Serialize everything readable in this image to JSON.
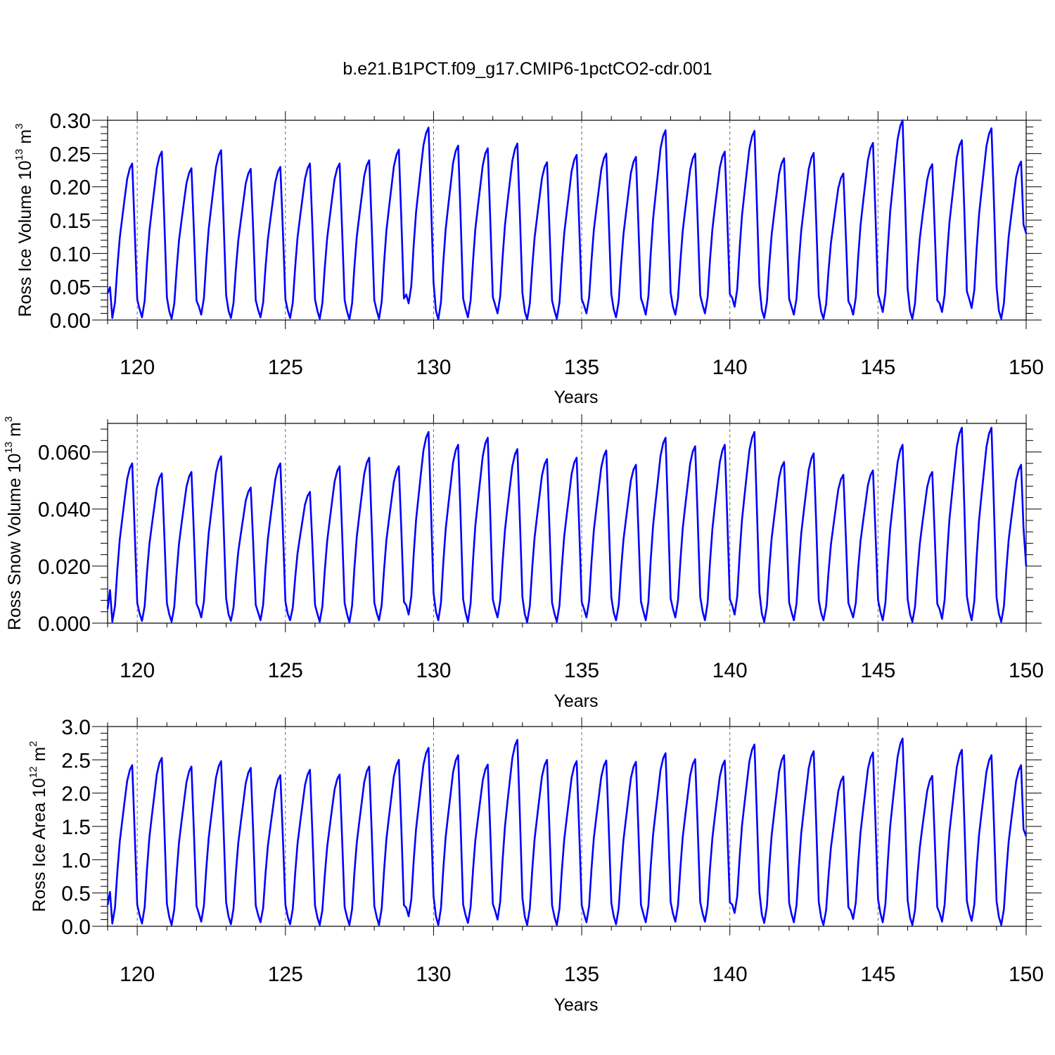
{
  "title": "b.e21.B1PCT.f09_g17.CMIP6-1pctCO2-cdr.001",
  "colors": {
    "line": "#0000ff",
    "axis": "#000000",
    "year_marker": "#666666"
  },
  "chart_data": [
    {
      "type": "line",
      "ylabel": {
        "prefix": "Ross Ice Volume 10",
        "exp": "13",
        "unit": " m",
        "unit_exp": "3"
      },
      "xlabel": "Years",
      "xlim": [
        119,
        150
      ],
      "ylim": [
        0.0,
        0.3
      ],
      "xticks": [
        "120",
        "125",
        "130",
        "135",
        "140",
        "145",
        "150"
      ],
      "yticks": [
        "0.00",
        "0.05",
        "0.10",
        "0.15",
        "0.20",
        "0.25",
        "0.30"
      ],
      "grid": false,
      "series": [
        {
          "annual_maxima": [
            0.235,
            0.253,
            0.228,
            0.255,
            0.227,
            0.23,
            0.235,
            0.235,
            0.24,
            0.256,
            0.289,
            0.262,
            0.258,
            0.265,
            0.237,
            0.248,
            0.25,
            0.245,
            0.285,
            0.25,
            0.253,
            0.284,
            0.243,
            0.251,
            0.22,
            0.266,
            0.3,
            0.234,
            0.27,
            0.288,
            0.238
          ],
          "annual_minima": [
            0.003,
            0.004,
            0.002,
            0.008,
            0.003,
            0.004,
            0.003,
            0.002,
            0.001,
            0.002,
            0.025,
            0.001,
            0.004,
            0.01,
            0.001,
            0.002,
            0.01,
            0.004,
            0.008,
            0.008,
            0.01,
            0.02,
            0.003,
            0.008,
            0.002,
            0.008,
            0.012,
            0.002,
            0.012,
            0.018,
            0.002
          ],
          "start": 0.04,
          "end": 0.13
        }
      ]
    },
    {
      "type": "line",
      "ylabel": {
        "prefix": "Ross Snow Volume 10",
        "exp": "13",
        "unit": " m",
        "unit_exp": "3"
      },
      "xlabel": "Years",
      "xlim": [
        119,
        150
      ],
      "ylim": [
        0.0,
        0.07
      ],
      "xticks": [
        "120",
        "125",
        "130",
        "135",
        "140",
        "145",
        "150"
      ],
      "yticks": [
        "0.000",
        "0.020",
        "0.040",
        "0.060"
      ],
      "grid": false,
      "series": [
        {
          "annual_maxima": [
            0.056,
            0.0525,
            0.053,
            0.0585,
            0.0475,
            0.056,
            0.046,
            0.055,
            0.058,
            0.055,
            0.067,
            0.0625,
            0.065,
            0.061,
            0.0575,
            0.058,
            0.0605,
            0.0555,
            0.065,
            0.062,
            0.0625,
            0.067,
            0.0565,
            0.0595,
            0.052,
            0.0535,
            0.0625,
            0.053,
            0.0685,
            0.0685,
            0.0555
          ],
          "annual_minima": [
            0.0005,
            0.0008,
            0.0005,
            0.002,
            0.0008,
            0.001,
            0.001,
            0.0005,
            0.0003,
            0.001,
            0.003,
            0.001,
            0.0005,
            0.002,
            0.0003,
            0.0005,
            0.002,
            0.001,
            0.001,
            0.002,
            0.001,
            0.003,
            0.0005,
            0.001,
            0.001,
            0.002,
            0.001,
            0.0005,
            0.0015,
            0.001,
            0.0005
          ],
          "start": 0.005,
          "end": 0.02
        }
      ]
    },
    {
      "type": "line",
      "ylabel": {
        "prefix": "Ross Ice Area 10",
        "exp": "12",
        "unit": " m",
        "unit_exp": "2"
      },
      "xlabel": "Years",
      "xlim": [
        119,
        150
      ],
      "ylim": [
        0.0,
        3.0
      ],
      "xticks": [
        "120",
        "125",
        "130",
        "135",
        "140",
        "145",
        "150"
      ],
      "yticks": [
        "0.0",
        "0.5",
        "1.0",
        "1.5",
        "2.0",
        "2.5",
        "3.0"
      ],
      "grid": false,
      "series": [
        {
          "annual_maxima": [
            2.42,
            2.53,
            2.4,
            2.48,
            2.38,
            2.27,
            2.35,
            2.28,
            2.4,
            2.5,
            2.68,
            2.57,
            2.43,
            2.8,
            2.5,
            2.48,
            2.49,
            2.47,
            2.6,
            2.51,
            2.49,
            2.73,
            2.57,
            2.63,
            2.25,
            2.61,
            2.82,
            2.26,
            2.65,
            2.57,
            2.42
          ],
          "annual_minima": [
            0.04,
            0.04,
            0.02,
            0.07,
            0.03,
            0.06,
            0.03,
            0.02,
            0.02,
            0.02,
            0.15,
            0.02,
            0.05,
            0.1,
            0.02,
            0.02,
            0.06,
            0.03,
            0.06,
            0.07,
            0.07,
            0.2,
            0.05,
            0.06,
            0.02,
            0.11,
            0.06,
            0.02,
            0.07,
            0.08,
            0.02
          ],
          "start": 0.32,
          "end": 1.35
        }
      ]
    }
  ]
}
